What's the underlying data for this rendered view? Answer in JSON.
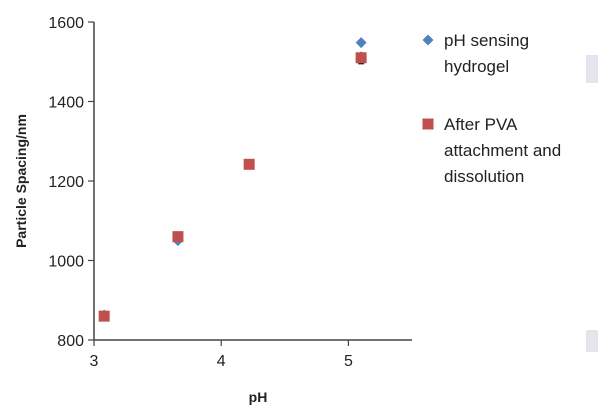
{
  "chart_data": {
    "type": "scatter",
    "xlabel": "pH",
    "ylabel": "Particle Spacing/nm",
    "xlim": [
      3,
      5.5
    ],
    "ylim": [
      800,
      1600
    ],
    "x_ticks": [
      "3",
      "4",
      "5"
    ],
    "y_ticks": [
      "800",
      "1000",
      "1200",
      "1400",
      "1600"
    ],
    "grid": false,
    "legend_position": "right",
    "series": [
      {
        "name": "pH sensing hydrogel",
        "legend_lines": [
          "pH sensing",
          "hydrogel"
        ],
        "marker": "diamond",
        "color": "#4F81BD",
        "x": [
          3.08,
          3.66,
          4.22,
          5.1
        ],
        "y": [
          863,
          1050,
          1242,
          1548
        ],
        "yerr": [
          0,
          0,
          0,
          0
        ]
      },
      {
        "name": "After PVA attachment and dissolution",
        "legend_lines": [
          "After PVA",
          "attachment and",
          "dissolution"
        ],
        "marker": "square",
        "color": "#C0504D",
        "x": [
          3.08,
          3.66,
          4.22,
          5.1
        ],
        "y": [
          860,
          1060,
          1242,
          1510
        ],
        "yerr": [
          0,
          0,
          0,
          15
        ]
      }
    ]
  }
}
